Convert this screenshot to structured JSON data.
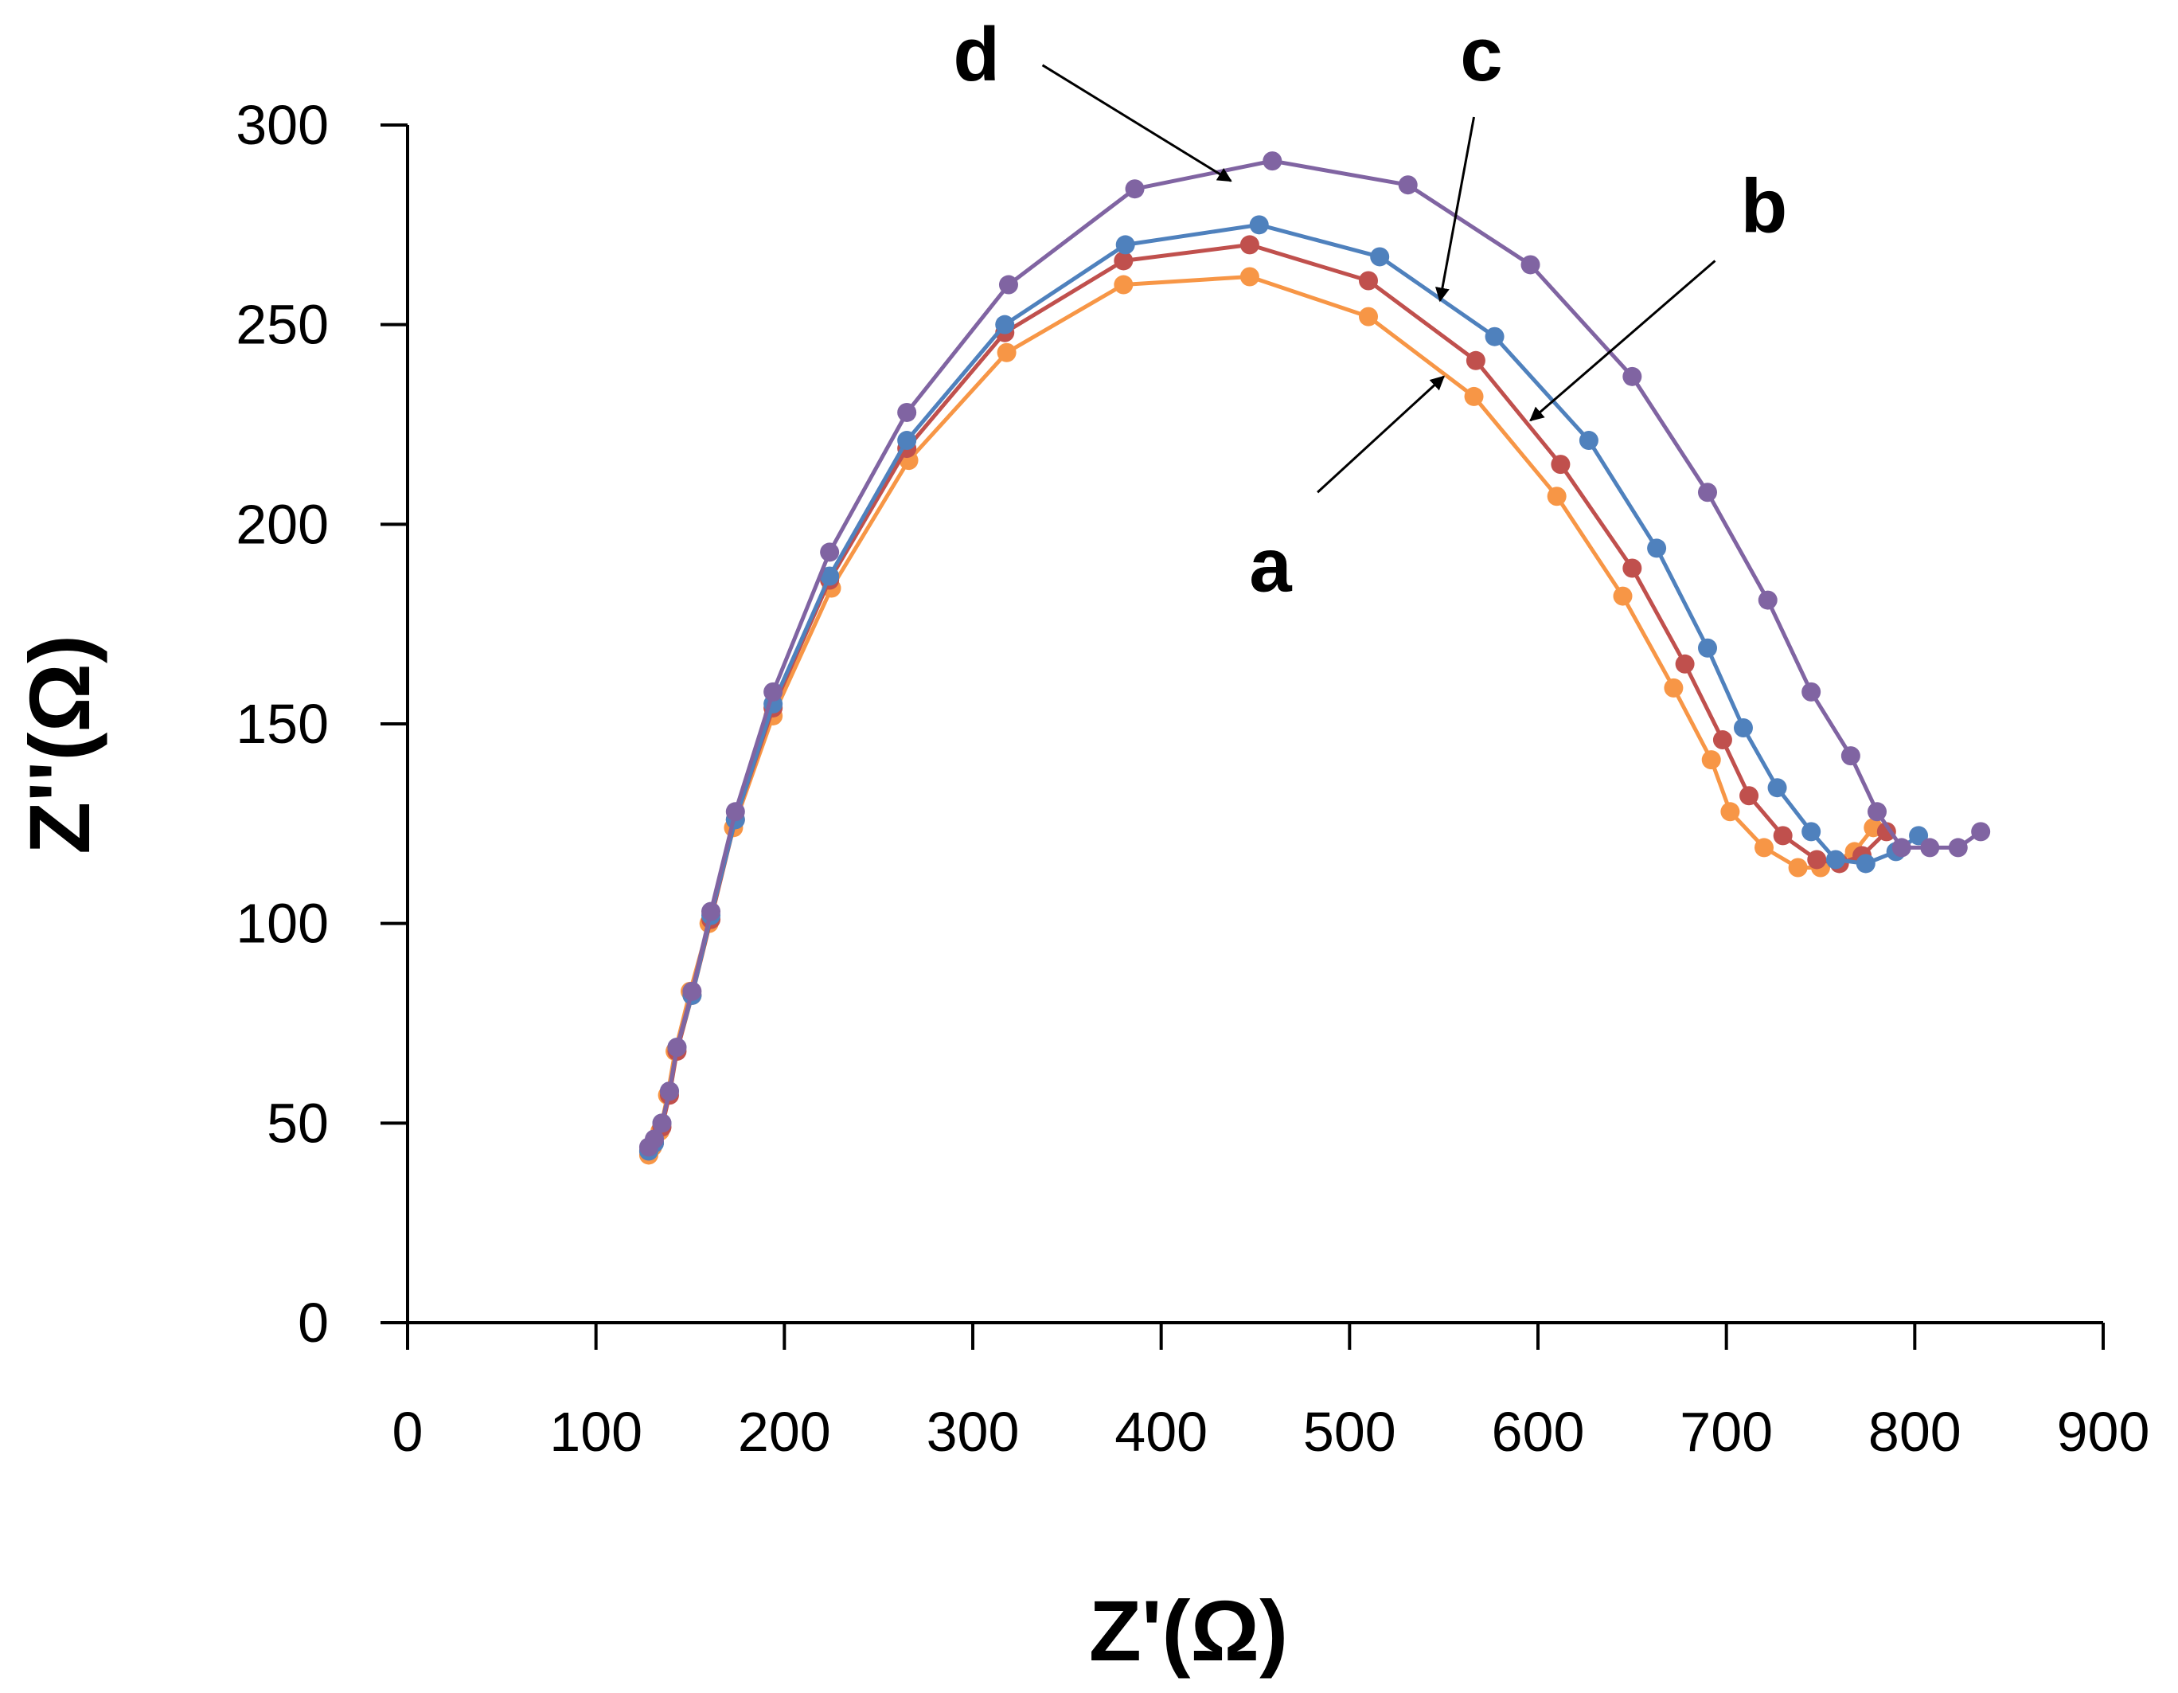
{
  "chart_data": {
    "type": "scatter",
    "title": "",
    "xlabel": "Z'(Ω)",
    "ylabel": "Z''(Ω)",
    "xlim": [
      0,
      900
    ],
    "ylim": [
      0,
      300
    ],
    "xticks": [
      "0",
      "100",
      "200",
      "300",
      "400",
      "500",
      "600",
      "700",
      "800",
      "900"
    ],
    "yticks": [
      "0",
      "50",
      "100",
      "150",
      "200",
      "250",
      "300"
    ],
    "grid": false,
    "legend": "none",
    "series": [
      {
        "name": "a",
        "color": "#F79646",
        "x": [
          128,
          130,
          134,
          138,
          142,
          150,
          160,
          173,
          194,
          225,
          266,
          318,
          380,
          447,
          510,
          566,
          610,
          645,
          672,
          692,
          702,
          720,
          738,
          750,
          768,
          778
        ],
        "y": [
          42,
          44,
          48,
          57,
          68,
          83,
          100,
          124,
          152,
          184,
          216,
          243,
          260,
          262,
          252,
          232,
          207,
          182,
          159,
          141,
          128,
          119,
          114,
          114,
          118,
          124
        ]
      },
      {
        "name": "b",
        "color": "#C0504D",
        "x": [
          128,
          131,
          135,
          139,
          143,
          151,
          161,
          174,
          194,
          224,
          265,
          317,
          380,
          447,
          510,
          567,
          612,
          650,
          678,
          698,
          712,
          730,
          748,
          760,
          772,
          785
        ],
        "y": [
          43,
          45,
          49,
          57,
          68,
          82,
          101,
          126,
          154,
          186,
          219,
          248,
          266,
          270,
          261,
          241,
          215,
          189,
          165,
          146,
          132,
          122,
          116,
          115,
          117,
          123
        ]
      },
      {
        "name": "c",
        "color": "#4F81BD",
        "x": [
          128,
          131,
          135,
          139,
          143,
          151,
          161,
          174,
          194,
          224,
          265,
          317,
          381,
          452,
          516,
          577,
          627,
          663,
          690,
          709,
          727,
          745,
          758,
          774,
          790,
          802
        ],
        "y": [
          43,
          45,
          50,
          58,
          69,
          82,
          102,
          126,
          155,
          187,
          221,
          250,
          270,
          275,
          267,
          247,
          221,
          194,
          169,
          149,
          134,
          123,
          116,
          115,
          118,
          122
        ]
      },
      {
        "name": "d",
        "color": "#8064A2",
        "x": [
          128,
          131,
          135,
          139,
          143,
          151,
          161,
          174,
          194,
          224,
          265,
          319,
          386,
          459,
          531,
          596,
          650,
          690,
          722,
          745,
          766,
          780,
          793,
          808,
          823,
          835
        ],
        "y": [
          44,
          46,
          50,
          58,
          69,
          83,
          103,
          128,
          158,
          193,
          228,
          260,
          284,
          291,
          285,
          265,
          237,
          208,
          181,
          158,
          142,
          128,
          119,
          119,
          119,
          123
        ]
      }
    ],
    "annotations": [
      {
        "label": "a",
        "text_at": [
          458,
          190
        ],
        "arrow_from": [
          483,
          208
        ],
        "arrow_to": [
          550,
          237
        ]
      },
      {
        "label": "b",
        "text_at": [
          720,
          280
        ],
        "arrow_from": [
          694,
          266
        ],
        "arrow_to": [
          596,
          226
        ]
      },
      {
        "label": "c",
        "text_at": [
          570,
          318
        ],
        "arrow_from": [
          566,
          302
        ],
        "arrow_to": [
          548,
          256
        ]
      },
      {
        "label": "d",
        "text_at": [
          302,
          318
        ],
        "arrow_from": [
          337,
          315
        ],
        "arrow_to": [
          437,
          286
        ]
      }
    ]
  }
}
